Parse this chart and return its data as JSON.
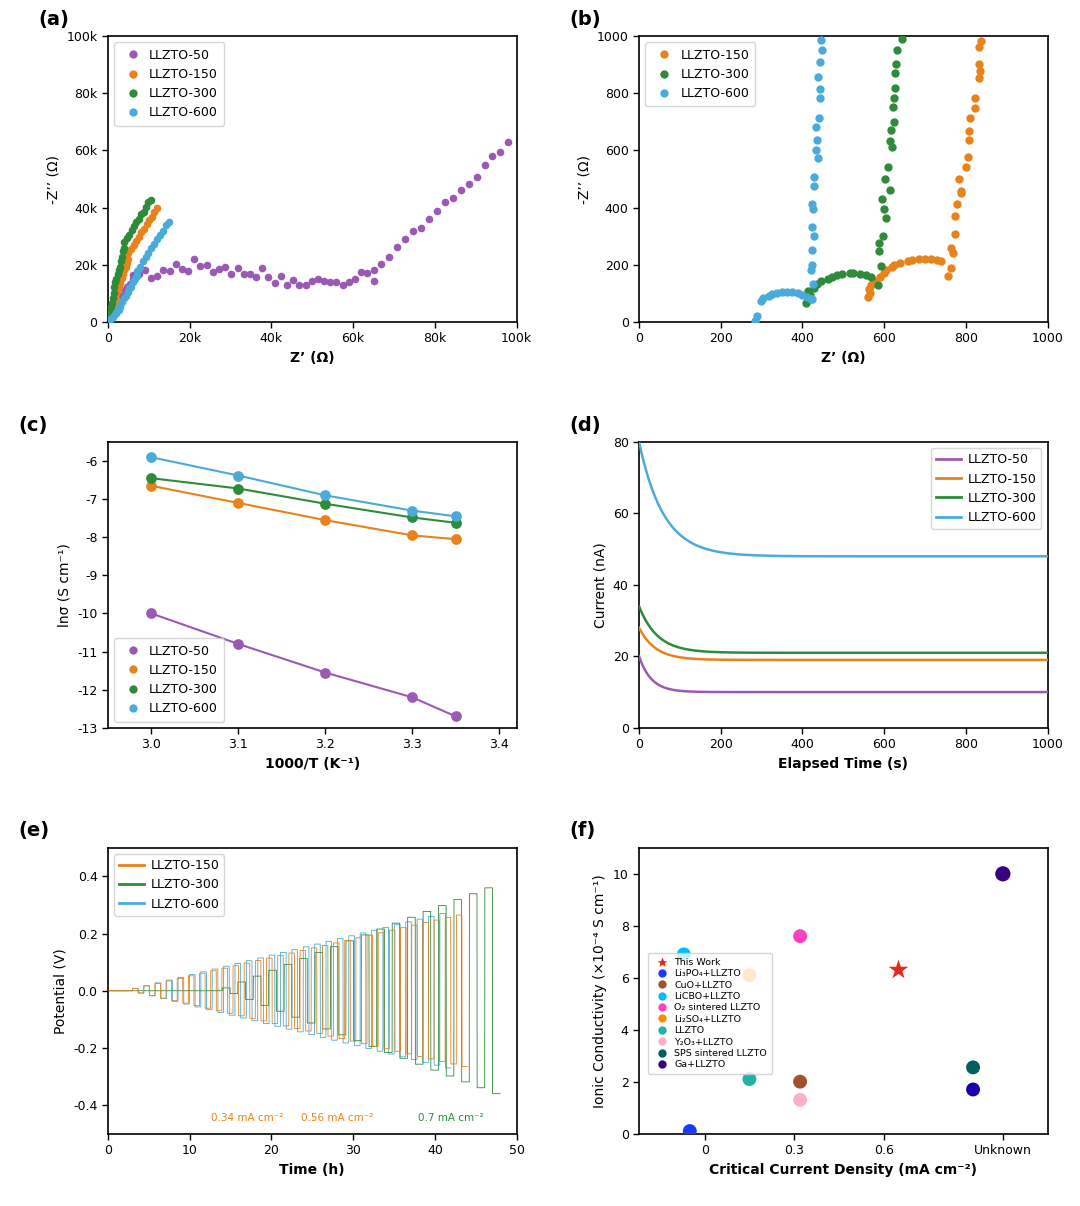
{
  "colors": {
    "purple": "#9B59B6",
    "orange": "#E8821A",
    "green": "#2E8B3A",
    "cyan": "#4AABDB"
  },
  "panel_a": {
    "xlabel": "Z’ (Ω)",
    "ylabel": "-Z’’ (Ω)",
    "xlim": [
      0,
      100000
    ],
    "ylim": [
      0,
      100000
    ],
    "xticks": [
      0,
      20000,
      40000,
      60000,
      80000,
      100000
    ],
    "xticklabels": [
      "0",
      "20k",
      "40k",
      "60k",
      "80k",
      "100k"
    ],
    "yticks": [
      0,
      20000,
      40000,
      60000,
      80000,
      100000
    ],
    "yticklabels": [
      "0",
      "20k",
      "40k",
      "60k",
      "80k",
      "100k"
    ]
  },
  "panel_b": {
    "xlabel": "Z’ (Ω)",
    "ylabel": "-Z’’ (Ω)",
    "xlim": [
      0,
      1000
    ],
    "ylim": [
      0,
      1000
    ],
    "xticks": [
      0,
      200,
      400,
      600,
      800,
      1000
    ],
    "yticks": [
      0,
      200,
      400,
      600,
      800,
      1000
    ]
  },
  "panel_c": {
    "xlabel": "1000/T (K⁻¹)",
    "ylabel": "lnσ (S cm⁻¹)",
    "xlim": [
      2.95,
      3.42
    ],
    "ylim": [
      -13,
      -5.5
    ],
    "xticks": [
      3.0,
      3.1,
      3.2,
      3.3,
      3.4
    ],
    "yticks": [
      -13,
      -12,
      -11,
      -10,
      -9,
      -8,
      -7,
      -6
    ]
  },
  "panel_d": {
    "xlabel": "Elapsed Time (s)",
    "ylabel": "Current (nA)",
    "xlim": [
      0,
      1000
    ],
    "ylim": [
      0,
      80
    ],
    "xticks": [
      0,
      200,
      400,
      600,
      800,
      1000
    ],
    "yticks": [
      0,
      20,
      40,
      60,
      80
    ]
  },
  "panel_e": {
    "xlabel": "Time (h)",
    "ylabel": "Potential (V)",
    "xlim": [
      0,
      50
    ],
    "ylim": [
      -0.5,
      0.5
    ],
    "xticks": [
      0,
      10,
      20,
      30,
      40,
      50
    ],
    "yticks": [
      -0.4,
      -0.2,
      0.0,
      0.2,
      0.4
    ]
  },
  "panel_f": {
    "xlabel": "Critical Current Density (mA cm⁻²)",
    "ylabel": "Ionic Conductivity (×10⁻⁴ S cm⁻¹)",
    "xlim": [
      -0.22,
      1.15
    ],
    "ylim": [
      0,
      11
    ],
    "xticks": [
      0.0,
      0.3,
      0.6,
      1.0
    ],
    "xticklabels": [
      "0",
      "0.3",
      "0.6",
      "Unknown"
    ],
    "yticks": [
      0,
      2,
      4,
      6,
      8,
      10
    ]
  }
}
